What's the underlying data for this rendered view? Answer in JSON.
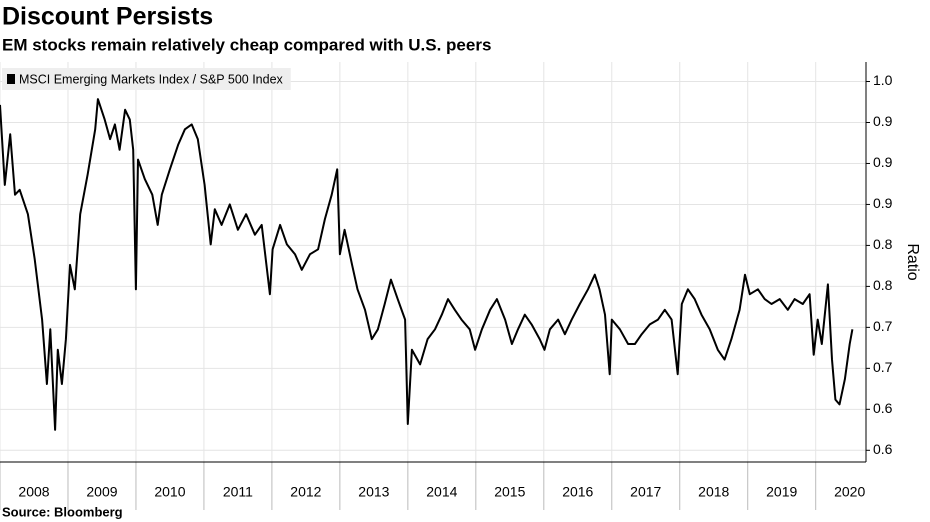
{
  "chart_data": {
    "type": "line",
    "title": "Discount Persists",
    "subtitle": "EM stocks remain relatively cheap compared with U.S. peers",
    "ylabel": "Ratio",
    "source": "Source: Bloomberg",
    "legend": "top-left",
    "grid": true,
    "xlim": [
      2008,
      2020.74
    ],
    "xticks": [
      2008,
      2009,
      2010,
      2011,
      2012,
      2013,
      2014,
      2015,
      2016,
      2017,
      2018,
      2019,
      2020
    ],
    "ylim": [
      0.59,
      1.0
    ],
    "yticks": [
      {
        "value": 0.98,
        "label": "1.0"
      },
      {
        "value": 0.938,
        "label": "0.9"
      },
      {
        "value": 0.896,
        "label": "0.9"
      },
      {
        "value": 0.854,
        "label": "0.9"
      },
      {
        "value": 0.812,
        "label": "0.8"
      },
      {
        "value": 0.77,
        "label": "0.8"
      },
      {
        "value": 0.728,
        "label": "0.7"
      },
      {
        "value": 0.686,
        "label": "0.7"
      },
      {
        "value": 0.644,
        "label": "0.6"
      },
      {
        "value": 0.602,
        "label": "0.6"
      }
    ],
    "x": [
      2008.0,
      2008.07,
      2008.15,
      2008.22,
      2008.29,
      2008.41,
      2008.51,
      2008.62,
      2008.69,
      2008.74,
      2008.81,
      2008.85,
      2008.91,
      2008.97,
      2009.03,
      2009.1,
      2009.18,
      2009.29,
      2009.4,
      2009.44,
      2009.54,
      2009.62,
      2009.69,
      2009.76,
      2009.84,
      2009.91,
      2009.96,
      2010.0,
      2010.03,
      2010.13,
      2010.24,
      2010.32,
      2010.38,
      2010.5,
      2010.62,
      2010.72,
      2010.82,
      2010.91,
      2011.01,
      2011.1,
      2011.16,
      2011.26,
      2011.38,
      2011.5,
      2011.62,
      2011.75,
      2011.85,
      2011.97,
      2012.01,
      2012.12,
      2012.22,
      2012.34,
      2012.44,
      2012.56,
      2012.68,
      2012.78,
      2012.88,
      2012.96,
      2013.0,
      2013.07,
      2013.18,
      2013.26,
      2013.37,
      2013.47,
      2013.56,
      2013.66,
      2013.75,
      2013.85,
      2013.96,
      2014.0,
      2014.06,
      2014.18,
      2014.29,
      2014.4,
      2014.5,
      2014.59,
      2014.69,
      2014.79,
      2014.91,
      2014.99,
      2015.09,
      2015.21,
      2015.31,
      2015.43,
      2015.53,
      2015.62,
      2015.72,
      2015.82,
      2015.94,
      2016.01,
      2016.09,
      2016.21,
      2016.31,
      2016.41,
      2016.53,
      2016.65,
      2016.75,
      2016.82,
      2016.9,
      2016.97,
      2017.0,
      2017.12,
      2017.24,
      2017.34,
      2017.44,
      2017.56,
      2017.68,
      2017.78,
      2017.88,
      2017.97,
      2018.03,
      2018.12,
      2018.22,
      2018.32,
      2018.44,
      2018.56,
      2018.66,
      2018.76,
      2018.88,
      2018.96,
      2019.03,
      2019.15,
      2019.25,
      2019.35,
      2019.47,
      2019.59,
      2019.69,
      2019.81,
      2019.91,
      2019.97,
      2020.03,
      2020.09,
      2020.18,
      2020.24,
      2020.29,
      2020.35,
      2020.43,
      2020.5,
      2020.54
    ],
    "series": [
      {
        "name": "MSCI Emerging Markets Index / S&P 500 Index",
        "color": "#000000",
        "values": [
          0.956,
          0.874,
          0.926,
          0.864,
          0.869,
          0.844,
          0.798,
          0.736,
          0.67,
          0.726,
          0.623,
          0.705,
          0.67,
          0.716,
          0.792,
          0.767,
          0.844,
          0.885,
          0.931,
          0.962,
          0.941,
          0.921,
          0.936,
          0.91,
          0.951,
          0.941,
          0.91,
          0.767,
          0.9,
          0.88,
          0.864,
          0.833,
          0.864,
          0.89,
          0.915,
          0.931,
          0.936,
          0.921,
          0.874,
          0.813,
          0.849,
          0.833,
          0.854,
          0.828,
          0.844,
          0.823,
          0.833,
          0.762,
          0.808,
          0.833,
          0.813,
          0.803,
          0.787,
          0.803,
          0.808,
          0.839,
          0.864,
          0.89,
          0.803,
          0.828,
          0.792,
          0.767,
          0.746,
          0.716,
          0.726,
          0.752,
          0.777,
          0.757,
          0.736,
          0.629,
          0.705,
          0.69,
          0.716,
          0.726,
          0.741,
          0.757,
          0.746,
          0.736,
          0.726,
          0.705,
          0.726,
          0.746,
          0.757,
          0.736,
          0.711,
          0.726,
          0.741,
          0.731,
          0.716,
          0.705,
          0.726,
          0.736,
          0.721,
          0.736,
          0.752,
          0.767,
          0.782,
          0.767,
          0.741,
          0.68,
          0.736,
          0.726,
          0.711,
          0.711,
          0.721,
          0.731,
          0.736,
          0.746,
          0.736,
          0.68,
          0.752,
          0.767,
          0.757,
          0.741,
          0.726,
          0.705,
          0.695,
          0.716,
          0.746,
          0.782,
          0.762,
          0.767,
          0.757,
          0.752,
          0.757,
          0.746,
          0.757,
          0.752,
          0.762,
          0.7,
          0.736,
          0.711,
          0.772,
          0.695,
          0.654,
          0.649,
          0.675,
          0.711,
          0.726
        ]
      }
    ]
  }
}
